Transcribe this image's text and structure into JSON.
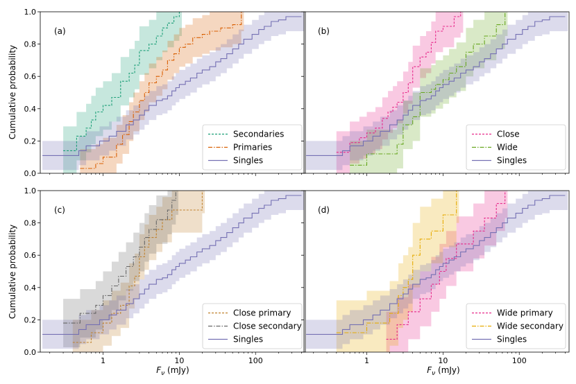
{
  "figure": {
    "ylabel": "Cumulative probability",
    "xlabel_base": "F",
    "xlabel_sub": "ν",
    "xlabel_unit": " (mJy)"
  },
  "chart_data": [
    {
      "type": "line",
      "panel_label": "(a)",
      "legend_position": "lower-right",
      "xscale": "log",
      "xlim": [
        0.15,
        450
      ],
      "ylim": [
        0,
        1
      ],
      "xticks": [
        {
          "v": 1,
          "label": "1"
        },
        {
          "v": 10,
          "label": "10"
        },
        {
          "v": 100,
          "label": "100"
        }
      ],
      "yticks": [
        0,
        0.2,
        0.4,
        0.6,
        0.8,
        1.0
      ],
      "ytick_labels": [
        "0.0",
        "0.2",
        "0.4",
        "0.6",
        "0.8",
        "1.0"
      ],
      "series": [
        {
          "name": "Secondaries",
          "color": "#1b9e77",
          "dash": "3,2",
          "band_width": 0.15,
          "x": [
            0.3,
            0.45,
            0.6,
            0.7,
            0.8,
            1.0,
            1.3,
            1.7,
            2.2,
            2.6,
            3.0,
            4.0,
            5.0,
            6.0,
            7.0,
            8.5,
            10.0
          ],
          "y": [
            0.14,
            0.23,
            0.28,
            0.33,
            0.38,
            0.42,
            0.47,
            0.57,
            0.62,
            0.67,
            0.76,
            0.8,
            0.85,
            0.9,
            0.93,
            0.97,
            1.0
          ]
        },
        {
          "name": "Primaries",
          "color": "#d95f02",
          "dash": "6,2,1.5,2",
          "band_width": 0.12,
          "x": [
            0.5,
            0.8,
            1.0,
            1.5,
            1.8,
            2.2,
            2.5,
            3.0,
            3.5,
            4.0,
            5.0,
            6.0,
            7.0,
            8.5,
            10.0,
            12.0,
            15.0,
            20.0,
            25.0,
            35.0,
            50.0,
            65.0
          ],
          "y": [
            0.03,
            0.06,
            0.1,
            0.18,
            0.24,
            0.32,
            0.38,
            0.45,
            0.5,
            0.56,
            0.6,
            0.64,
            0.7,
            0.74,
            0.78,
            0.8,
            0.84,
            0.86,
            0.88,
            0.9,
            0.92,
            1.0
          ]
        },
        {
          "name": "Singles",
          "color": "#7570b3",
          "dash": "",
          "band_width": 0.09,
          "x": [
            0.16,
            0.48,
            0.6,
            0.9,
            1.2,
            1.5,
            2.0,
            2.5,
            3.0,
            3.5,
            4.0,
            5.0,
            6.0,
            7.0,
            8.0,
            9.0,
            10.0,
            12.0,
            14.0,
            17.0,
            20.0,
            25.0,
            30.0,
            35.0,
            42.0,
            50.0,
            60.0,
            70.0,
            90.0,
            110.0,
            130.0,
            160.0,
            200.0,
            250.0,
            400.0
          ],
          "y": [
            0.11,
            0.14,
            0.17,
            0.2,
            0.23,
            0.26,
            0.3,
            0.33,
            0.36,
            0.39,
            0.42,
            0.45,
            0.46,
            0.48,
            0.51,
            0.53,
            0.55,
            0.57,
            0.59,
            0.62,
            0.64,
            0.66,
            0.69,
            0.71,
            0.74,
            0.77,
            0.8,
            0.83,
            0.86,
            0.89,
            0.91,
            0.94,
            0.95,
            0.97,
            0.97
          ]
        }
      ]
    },
    {
      "type": "line",
      "panel_label": "(b)",
      "legend_position": "lower-right",
      "xscale": "log",
      "xlim": [
        0.15,
        450
      ],
      "ylim": [
        0,
        1
      ],
      "xticks": [
        {
          "v": 1,
          "label": "1"
        },
        {
          "v": 10,
          "label": "10"
        },
        {
          "v": 100,
          "label": "100"
        }
      ],
      "yticks": [
        0,
        0.2,
        0.4,
        0.6,
        0.8,
        1.0
      ],
      "ytick_labels": [
        "",
        "",
        "",
        "",
        "",
        ""
      ],
      "series": [
        {
          "name": "Close",
          "color": "#e7298a",
          "dash": "3,2",
          "band_width": 0.13,
          "x": [
            0.4,
            0.6,
            0.8,
            1.0,
            1.3,
            1.6,
            1.9,
            2.2,
            2.5,
            3.0,
            3.5,
            4.0,
            5.0,
            6.0,
            7.0,
            8.0,
            10.0,
            14.0,
            17.0
          ],
          "y": [
            0.13,
            0.19,
            0.22,
            0.25,
            0.28,
            0.34,
            0.38,
            0.41,
            0.44,
            0.5,
            0.56,
            0.66,
            0.72,
            0.75,
            0.81,
            0.88,
            0.91,
            0.97,
            1.0
          ]
        },
        {
          "name": "Wide",
          "color": "#66a61e",
          "dash": "6,2,1.5,2",
          "band_width": 0.15,
          "x": [
            0.6,
            1.0,
            2.0,
            2.5,
            3.0,
            4.0,
            5.0,
            7.0,
            8.0,
            10.0,
            12.0,
            15.0,
            20.0,
            25.0,
            35.0,
            50.0,
            65.0
          ],
          "y": [
            0.05,
            0.12,
            0.12,
            0.18,
            0.3,
            0.35,
            0.5,
            0.52,
            0.55,
            0.58,
            0.62,
            0.66,
            0.75,
            0.8,
            0.85,
            0.92,
            1.0
          ]
        },
        {
          "name": "Singles",
          "color": "#7570b3",
          "dash": "",
          "band_width": 0.09,
          "x": [
            0.16,
            0.48,
            0.6,
            0.9,
            1.2,
            1.5,
            2.0,
            2.5,
            3.0,
            3.5,
            4.0,
            5.0,
            6.0,
            7.0,
            8.0,
            9.0,
            10.0,
            12.0,
            14.0,
            17.0,
            20.0,
            25.0,
            30.0,
            35.0,
            42.0,
            50.0,
            60.0,
            70.0,
            90.0,
            110.0,
            130.0,
            160.0,
            200.0,
            250.0,
            400.0
          ],
          "y": [
            0.11,
            0.14,
            0.17,
            0.2,
            0.23,
            0.26,
            0.3,
            0.33,
            0.36,
            0.39,
            0.42,
            0.45,
            0.46,
            0.48,
            0.51,
            0.53,
            0.55,
            0.57,
            0.59,
            0.62,
            0.64,
            0.66,
            0.69,
            0.71,
            0.74,
            0.77,
            0.8,
            0.83,
            0.86,
            0.89,
            0.91,
            0.94,
            0.95,
            0.97,
            0.97
          ]
        }
      ]
    },
    {
      "type": "line",
      "panel_label": "(c)",
      "legend_position": "lower-right",
      "xscale": "log",
      "xlim": [
        0.15,
        450
      ],
      "ylim": [
        0,
        1
      ],
      "xticks": [
        {
          "v": 1,
          "label": "1"
        },
        {
          "v": 10,
          "label": "10"
        },
        {
          "v": 100,
          "label": "100"
        }
      ],
      "yticks": [
        0,
        0.2,
        0.4,
        0.6,
        0.8,
        1.0
      ],
      "ytick_labels": [
        "0.0",
        "0.2",
        "0.4",
        "0.6",
        "0.8",
        "1.0"
      ],
      "series": [
        {
          "name": "Close primary",
          "color": "#bf812d",
          "dash": "3,2",
          "band_width": 0.14,
          "x": [
            0.4,
            0.7,
            1.0,
            1.3,
            1.7,
            2.2,
            2.6,
            3.0,
            3.5,
            4.0,
            5.0,
            6.0,
            8.0,
            10.0,
            20.0
          ],
          "y": [
            0.06,
            0.12,
            0.18,
            0.24,
            0.29,
            0.41,
            0.47,
            0.59,
            0.65,
            0.71,
            0.76,
            0.82,
            0.88,
            0.88,
            1.0
          ]
        },
        {
          "name": "Close secondary",
          "color": "#666666",
          "dash": "6,2,1.5,2",
          "band_width": 0.15,
          "x": [
            0.3,
            0.5,
            0.8,
            1.0,
            1.3,
            1.6,
            2.0,
            2.5,
            3.0,
            3.5,
            4.0,
            5.0,
            6.0,
            7.0,
            8.0,
            9.0
          ],
          "y": [
            0.18,
            0.24,
            0.29,
            0.35,
            0.41,
            0.47,
            0.53,
            0.59,
            0.65,
            0.71,
            0.76,
            0.82,
            0.82,
            0.88,
            0.94,
            1.0
          ]
        },
        {
          "name": "Singles",
          "color": "#7570b3",
          "dash": "",
          "band_width": 0.09,
          "x": [
            0.16,
            0.48,
            0.6,
            0.9,
            1.2,
            1.5,
            2.0,
            2.5,
            3.0,
            3.5,
            4.0,
            5.0,
            6.0,
            7.0,
            8.0,
            9.0,
            10.0,
            12.0,
            14.0,
            17.0,
            20.0,
            25.0,
            30.0,
            35.0,
            42.0,
            50.0,
            60.0,
            70.0,
            90.0,
            110.0,
            130.0,
            160.0,
            200.0,
            250.0,
            400.0
          ],
          "y": [
            0.11,
            0.14,
            0.17,
            0.2,
            0.23,
            0.26,
            0.3,
            0.33,
            0.36,
            0.39,
            0.42,
            0.45,
            0.46,
            0.48,
            0.51,
            0.53,
            0.55,
            0.57,
            0.59,
            0.62,
            0.64,
            0.66,
            0.69,
            0.71,
            0.74,
            0.77,
            0.8,
            0.83,
            0.86,
            0.89,
            0.91,
            0.94,
            0.95,
            0.97,
            0.97
          ]
        }
      ]
    },
    {
      "type": "line",
      "panel_label": "(d)",
      "legend_position": "lower-right",
      "xscale": "log",
      "xlim": [
        0.15,
        450
      ],
      "ylim": [
        0,
        1
      ],
      "xticks": [
        {
          "v": 1,
          "label": "1"
        },
        {
          "v": 10,
          "label": "10"
        },
        {
          "v": 100,
          "label": "100"
        }
      ],
      "yticks": [
        0,
        0.2,
        0.4,
        0.6,
        0.8,
        1.0
      ],
      "ytick_labels": [
        "",
        "",
        "",
        "",
        "",
        ""
      ],
      "series": [
        {
          "name": "Wide primary",
          "color": "#e7298a",
          "dash": "3,2",
          "band_width": 0.17,
          "x": [
            1.8,
            2.5,
            3.5,
            5.0,
            7.0,
            9.0,
            11.0,
            15.0,
            25.0,
            35.0,
            50.0,
            65.0
          ],
          "y": [
            0.08,
            0.17,
            0.25,
            0.33,
            0.42,
            0.5,
            0.58,
            0.67,
            0.75,
            0.83,
            0.92,
            1.0
          ]
        },
        {
          "name": "Wide secondary",
          "color": "#e6ab02",
          "dash": "6,2,1.5,2",
          "band_width": 0.2,
          "x": [
            0.4,
            1.0,
            2.0,
            2.6,
            3.0,
            3.5,
            4.0,
            5.0,
            7.0,
            10.0,
            15.0
          ],
          "y": [
            0.12,
            0.18,
            0.24,
            0.35,
            0.4,
            0.45,
            0.6,
            0.7,
            0.75,
            0.85,
            1.0
          ]
        },
        {
          "name": "Singles",
          "color": "#7570b3",
          "dash": "",
          "band_width": 0.09,
          "x": [
            0.16,
            0.48,
            0.6,
            0.9,
            1.2,
            1.5,
            2.0,
            2.5,
            3.0,
            3.5,
            4.0,
            5.0,
            6.0,
            7.0,
            8.0,
            9.0,
            10.0,
            12.0,
            14.0,
            17.0,
            20.0,
            25.0,
            30.0,
            35.0,
            42.0,
            50.0,
            60.0,
            70.0,
            90.0,
            110.0,
            130.0,
            160.0,
            200.0,
            250.0,
            400.0
          ],
          "y": [
            0.11,
            0.14,
            0.17,
            0.2,
            0.23,
            0.26,
            0.3,
            0.33,
            0.36,
            0.39,
            0.42,
            0.45,
            0.46,
            0.48,
            0.51,
            0.53,
            0.55,
            0.57,
            0.59,
            0.62,
            0.64,
            0.66,
            0.69,
            0.71,
            0.74,
            0.77,
            0.8,
            0.83,
            0.86,
            0.89,
            0.91,
            0.94,
            0.95,
            0.97,
            0.97
          ]
        }
      ]
    }
  ]
}
